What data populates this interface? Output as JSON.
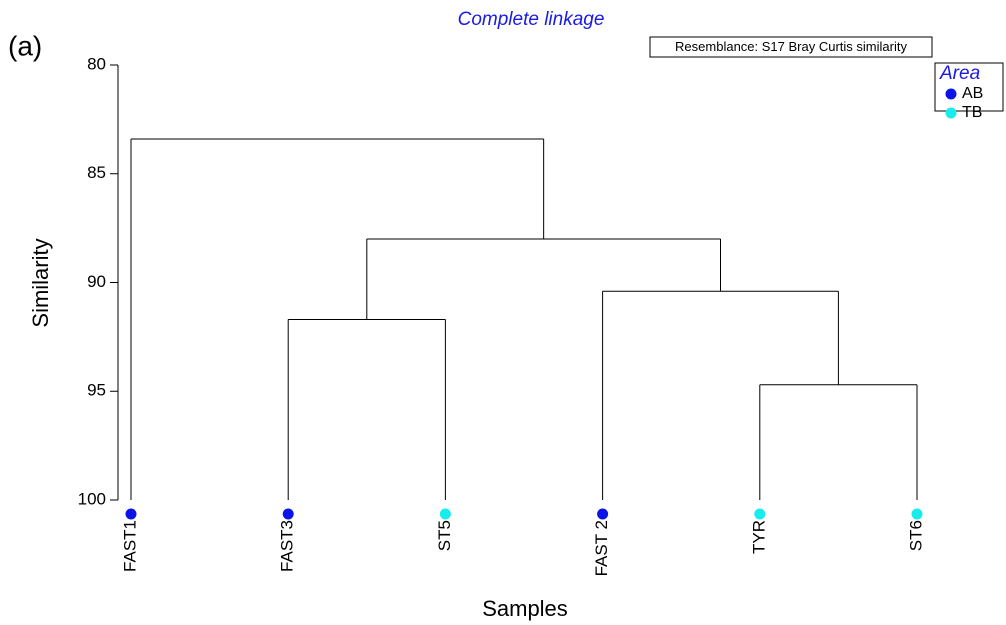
{
  "panel_label": "(a)",
  "chart_data": {
    "type": "dendrogram",
    "title": "Complete linkage",
    "note": "Resemblance: S17 Bray Curtis similarity",
    "y_label": "Similarity",
    "x_label": "Samples",
    "ylim": [
      80,
      100
    ],
    "invert_y": true,
    "yticks": [
      80,
      85,
      90,
      95,
      100
    ],
    "legend": {
      "title": "Area",
      "position": "top-right",
      "series": [
        {
          "name": "AB",
          "color": "#0a14e6"
        },
        {
          "name": "TB",
          "color": "#18ecec"
        }
      ]
    },
    "tree": {
      "similarity": 83.4,
      "children": [
        {
          "name": "FAST1",
          "group": "AB"
        },
        {
          "similarity": 88.0,
          "children": [
            {
              "similarity": 91.7,
              "children": [
                {
                  "name": "FAST3",
                  "group": "AB"
                },
                {
                  "name": "ST5",
                  "group": "TB"
                }
              ]
            },
            {
              "similarity": 90.4,
              "children": [
                {
                  "name": "FAST 2",
                  "group": "AB"
                },
                {
                  "similarity": 94.7,
                  "children": [
                    {
                      "name": "TYR",
                      "group": "TB"
                    },
                    {
                      "name": "ST6",
                      "group": "TB"
                    }
                  ]
                }
              ]
            }
          ]
        }
      ]
    }
  }
}
